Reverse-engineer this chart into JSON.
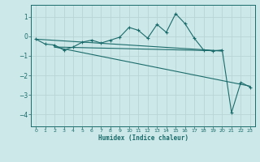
{
  "bg_color": "#cde8e8",
  "grid_color": "#b8d4d4",
  "line_color": "#1a6b6b",
  "xlabel": "Humidex (Indice chaleur)",
  "xlim": [
    -0.5,
    23.5
  ],
  "ylim": [
    -4.6,
    1.6
  ],
  "yticks": [
    -4,
    -3,
    -2,
    -1,
    0,
    1
  ],
  "xticks": [
    0,
    1,
    2,
    3,
    4,
    5,
    6,
    7,
    8,
    9,
    10,
    11,
    12,
    13,
    14,
    15,
    16,
    17,
    18,
    19,
    20,
    21,
    22,
    23
  ],
  "main_series": {
    "x": [
      0,
      1,
      2,
      3,
      4,
      5,
      6,
      7,
      8,
      9,
      10,
      11,
      12,
      13,
      14,
      15,
      16,
      17,
      18,
      19,
      20,
      21,
      22,
      23
    ],
    "y": [
      -0.15,
      -0.4,
      -0.45,
      -0.7,
      -0.55,
      -0.3,
      -0.2,
      -0.35,
      -0.2,
      -0.05,
      0.45,
      0.3,
      -0.1,
      0.6,
      0.2,
      1.15,
      0.65,
      -0.1,
      -0.7,
      -0.75,
      -0.7,
      -3.9,
      -2.35,
      -2.6
    ]
  },
  "trend_line1": {
    "x": [
      0,
      20
    ],
    "y": [
      -0.15,
      -0.75
    ]
  },
  "trend_line2": {
    "x": [
      2,
      20
    ],
    "y": [
      -0.55,
      -0.75
    ]
  },
  "trend_line3": {
    "x": [
      2,
      23
    ],
    "y": [
      -0.55,
      -2.55
    ]
  }
}
